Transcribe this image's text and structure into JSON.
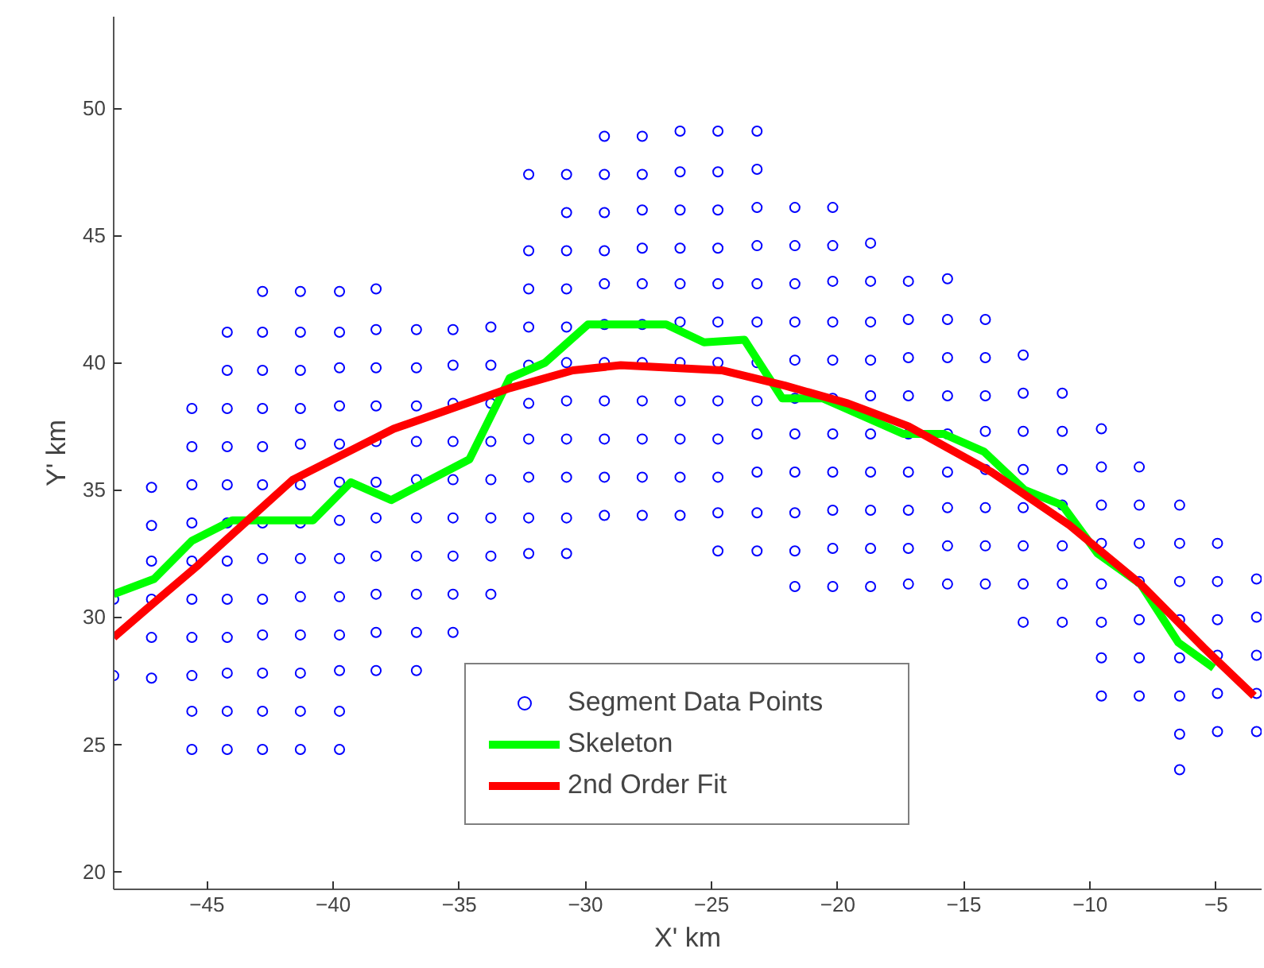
{
  "chart_data": {
    "type": "scatter",
    "xlabel": "X' km",
    "ylabel": "Y' km",
    "xlim": [
      -48.7,
      -3.2
    ],
    "ylim": [
      19.3,
      53.6
    ],
    "xticks": [
      -45,
      -40,
      -35,
      -30,
      -25,
      -20,
      -15,
      -10,
      -5
    ],
    "yticks": [
      20,
      25,
      30,
      35,
      40,
      45,
      50
    ],
    "grid": false,
    "legend": "bottom",
    "series": [
      {
        "name": "Segment Data Points",
        "marker": "circle",
        "color": "#0000ff",
        "x": [
          -48.7,
          -48.7,
          -47.2,
          -47.2,
          -47.2,
          -47.2,
          -47.2,
          -47.2,
          -45.6,
          -45.6,
          -45.6,
          -45.6,
          -45.6,
          -45.6,
          -45.6,
          -45.6,
          -45.6,
          -45.6,
          -44.2,
          -44.2,
          -44.2,
          -44.2,
          -44.2,
          -44.2,
          -44.2,
          -44.2,
          -44.2,
          -44.2,
          -44.2,
          -44.2,
          -42.8,
          -42.8,
          -42.8,
          -42.8,
          -42.8,
          -42.8,
          -42.8,
          -42.8,
          -42.8,
          -42.8,
          -42.8,
          -42.8,
          -42.8,
          -41.3,
          -41.3,
          -41.3,
          -41.3,
          -41.3,
          -41.3,
          -41.3,
          -41.3,
          -41.3,
          -41.3,
          -41.3,
          -41.3,
          -41.3,
          -39.75,
          -39.75,
          -39.75,
          -39.75,
          -39.75,
          -39.75,
          -39.75,
          -39.75,
          -39.75,
          -39.75,
          -39.75,
          -39.75,
          -39.75,
          -38.3,
          -38.3,
          -38.3,
          -38.3,
          -38.3,
          -38.3,
          -38.3,
          -38.3,
          -38.3,
          -38.3,
          -38.3,
          -36.7,
          -36.7,
          -36.7,
          -36.7,
          -36.7,
          -36.7,
          -36.7,
          -36.7,
          -36.7,
          -36.7,
          -35.25,
          -35.25,
          -35.25,
          -35.25,
          -35.25,
          -35.25,
          -35.25,
          -35.25,
          -35.25,
          -33.75,
          -33.75,
          -33.75,
          -33.75,
          -33.75,
          -33.75,
          -33.75,
          -33.75,
          -32.25,
          -32.25,
          -32.25,
          -32.25,
          -32.25,
          -32.25,
          -32.25,
          -32.25,
          -32.25,
          -32.25,
          -30.75,
          -30.75,
          -30.75,
          -30.75,
          -30.75,
          -30.75,
          -30.75,
          -30.75,
          -30.75,
          -30.75,
          -30.75,
          -29.25,
          -29.25,
          -29.25,
          -29.25,
          -29.25,
          -29.25,
          -29.25,
          -29.25,
          -29.25,
          -29.25,
          -29.25,
          -27.75,
          -27.75,
          -27.75,
          -27.75,
          -27.75,
          -27.75,
          -27.75,
          -27.75,
          -27.75,
          -27.75,
          -27.75,
          -26.25,
          -26.25,
          -26.25,
          -26.25,
          -26.25,
          -26.25,
          -26.25,
          -26.25,
          -26.25,
          -26.25,
          -26.25,
          -24.75,
          -24.75,
          -24.75,
          -24.75,
          -24.75,
          -24.75,
          -24.75,
          -24.75,
          -24.75,
          -24.75,
          -24.75,
          -24.75,
          -23.2,
          -23.2,
          -23.2,
          -23.2,
          -23.2,
          -23.2,
          -23.2,
          -23.2,
          -23.2,
          -23.2,
          -23.2,
          -23.2,
          -21.7,
          -21.7,
          -21.7,
          -21.7,
          -21.7,
          -21.7,
          -21.7,
          -21.7,
          -21.7,
          -21.7,
          -21.7,
          -20.2,
          -20.2,
          -20.2,
          -20.2,
          -20.2,
          -20.2,
          -20.2,
          -20.2,
          -20.2,
          -20.2,
          -20.2,
          -18.7,
          -18.7,
          -18.7,
          -18.7,
          -18.7,
          -18.7,
          -18.7,
          -18.7,
          -18.7,
          -18.7,
          -17.2,
          -17.2,
          -17.2,
          -17.2,
          -17.2,
          -17.2,
          -17.2,
          -17.2,
          -17.2,
          -15.65,
          -15.65,
          -15.65,
          -15.65,
          -15.65,
          -15.65,
          -15.65,
          -15.65,
          -15.65,
          -14.15,
          -14.15,
          -14.15,
          -14.15,
          -14.15,
          -14.15,
          -14.15,
          -14.15,
          -12.65,
          -12.65,
          -12.65,
          -12.65,
          -12.65,
          -12.65,
          -12.65,
          -12.65,
          -11.1,
          -11.1,
          -11.1,
          -11.1,
          -11.1,
          -11.1,
          -11.1,
          -9.55,
          -9.55,
          -9.55,
          -9.55,
          -9.55,
          -9.55,
          -9.55,
          -9.55,
          -8.05,
          -8.05,
          -8.05,
          -8.05,
          -8.05,
          -8.05,
          -8.05,
          -6.45,
          -6.45,
          -6.45,
          -6.45,
          -6.45,
          -6.45,
          -6.45,
          -6.45,
          -4.95,
          -4.95,
          -4.95,
          -4.95,
          -4.95,
          -4.95,
          -3.4,
          -3.4,
          -3.4,
          -3.4,
          -3.4
        ],
        "values": [
          30.7,
          27.7,
          35.1,
          33.6,
          32.2,
          30.7,
          29.2,
          27.6,
          38.2,
          36.7,
          35.2,
          33.7,
          32.2,
          30.7,
          29.2,
          27.7,
          26.3,
          24.8,
          41.2,
          39.7,
          38.2,
          36.7,
          35.2,
          33.7,
          32.2,
          30.7,
          29.2,
          27.8,
          26.3,
          24.8,
          42.8,
          41.2,
          39.7,
          38.2,
          36.7,
          35.2,
          33.7,
          32.3,
          30.7,
          29.3,
          27.8,
          26.3,
          24.8,
          42.8,
          41.2,
          39.7,
          38.2,
          36.8,
          35.2,
          33.7,
          32.3,
          30.8,
          29.3,
          27.8,
          26.3,
          24.8,
          42.8,
          41.2,
          39.8,
          38.3,
          36.8,
          35.3,
          33.8,
          32.3,
          30.8,
          29.3,
          27.9,
          26.3,
          24.8,
          42.9,
          41.3,
          39.8,
          38.3,
          36.9,
          35.3,
          33.9,
          32.4,
          30.9,
          29.4,
          27.9,
          41.3,
          39.8,
          38.3,
          36.9,
          35.4,
          33.9,
          32.4,
          30.9,
          29.4,
          27.9,
          41.3,
          39.9,
          38.4,
          36.9,
          35.4,
          33.9,
          32.4,
          30.9,
          29.4,
          41.4,
          39.9,
          38.4,
          36.9,
          35.4,
          33.9,
          32.4,
          30.9,
          47.4,
          44.4,
          42.9,
          41.4,
          39.9,
          38.4,
          37.0,
          35.5,
          33.9,
          32.5,
          47.4,
          45.9,
          44.4,
          42.9,
          41.4,
          40.0,
          38.5,
          37.0,
          35.5,
          33.9,
          32.5,
          48.9,
          47.4,
          45.9,
          44.4,
          43.1,
          41.5,
          40.0,
          38.5,
          37.0,
          35.5,
          34.0,
          48.9,
          47.4,
          46.0,
          44.5,
          43.1,
          41.5,
          40.0,
          38.5,
          37.0,
          35.5,
          34.0,
          49.1,
          47.5,
          46.0,
          44.5,
          43.1,
          41.6,
          40.0,
          38.5,
          37.0,
          35.5,
          34.0,
          49.1,
          47.5,
          46.0,
          44.5,
          43.1,
          41.6,
          40.0,
          38.5,
          37.0,
          35.5,
          34.1,
          32.6,
          49.1,
          47.6,
          46.1,
          44.6,
          43.1,
          41.6,
          40.0,
          38.5,
          37.2,
          35.7,
          34.1,
          32.6,
          46.1,
          44.6,
          43.1,
          41.6,
          40.1,
          38.6,
          37.2,
          35.7,
          34.1,
          32.6,
          31.2,
          46.1,
          44.6,
          43.2,
          41.6,
          40.1,
          38.6,
          37.2,
          35.7,
          34.2,
          32.7,
          31.2,
          44.7,
          43.2,
          41.6,
          40.1,
          38.7,
          37.2,
          35.7,
          34.2,
          32.7,
          31.2,
          43.2,
          41.7,
          40.2,
          38.7,
          37.2,
          35.7,
          34.2,
          32.7,
          31.3,
          43.3,
          41.7,
          40.2,
          38.7,
          37.2,
          35.7,
          34.3,
          32.8,
          31.3,
          41.7,
          40.2,
          38.7,
          37.3,
          35.8,
          34.3,
          32.8,
          31.3,
          40.3,
          38.8,
          37.3,
          35.8,
          34.3,
          32.8,
          31.3,
          29.8,
          38.8,
          37.3,
          35.8,
          34.4,
          32.8,
          31.3,
          29.8,
          37.4,
          35.9,
          34.4,
          32.9,
          31.3,
          29.8,
          28.4,
          26.9,
          35.9,
          34.4,
          32.9,
          31.4,
          29.9,
          28.4,
          26.9,
          34.4,
          32.9,
          31.4,
          29.9,
          28.4,
          26.9,
          25.4,
          24.0,
          32.9,
          31.4,
          29.9,
          28.5,
          27.0,
          25.5,
          31.5,
          30.0,
          28.5,
          27.0,
          25.5
        ]
      },
      {
        "name": "Skeleton",
        "type": "line",
        "color": "#00ff00",
        "x": [
          -48.7,
          -47.1,
          -45.6,
          -44.0,
          -40.8,
          -39.3,
          -37.7,
          -34.6,
          -33.0,
          -31.6,
          -29.9,
          -26.8,
          -25.3,
          -23.7,
          -22.2,
          -20.6,
          -17.4,
          -15.8,
          -14.2,
          -12.6,
          -11.1,
          -9.7,
          -8.0,
          -6.5,
          -5.1
        ],
        "values": [
          30.9,
          31.5,
          33.0,
          33.8,
          33.8,
          35.3,
          34.6,
          36.2,
          39.4,
          40.0,
          41.5,
          41.5,
          40.8,
          40.9,
          38.6,
          38.6,
          37.2,
          37.2,
          36.5,
          35.0,
          34.4,
          32.5,
          31.3,
          29.0,
          28.0
        ]
      },
      {
        "name": "2nd Order Fit",
        "type": "line",
        "color": "#ff0000",
        "x": [
          -48.7,
          -47.3,
          -45.4,
          -41.6,
          -37.6,
          -33.0,
          -30.5,
          -28.6,
          -24.6,
          -22.1,
          -19.6,
          -17.2,
          -13.9,
          -10.8,
          -8.0,
          -5.5,
          -3.5
        ],
        "values": [
          29.2,
          30.4,
          32.0,
          35.4,
          37.4,
          39.0,
          39.7,
          39.9,
          39.7,
          39.1,
          38.4,
          37.5,
          35.7,
          33.6,
          31.3,
          28.8,
          26.9
        ]
      }
    ]
  }
}
